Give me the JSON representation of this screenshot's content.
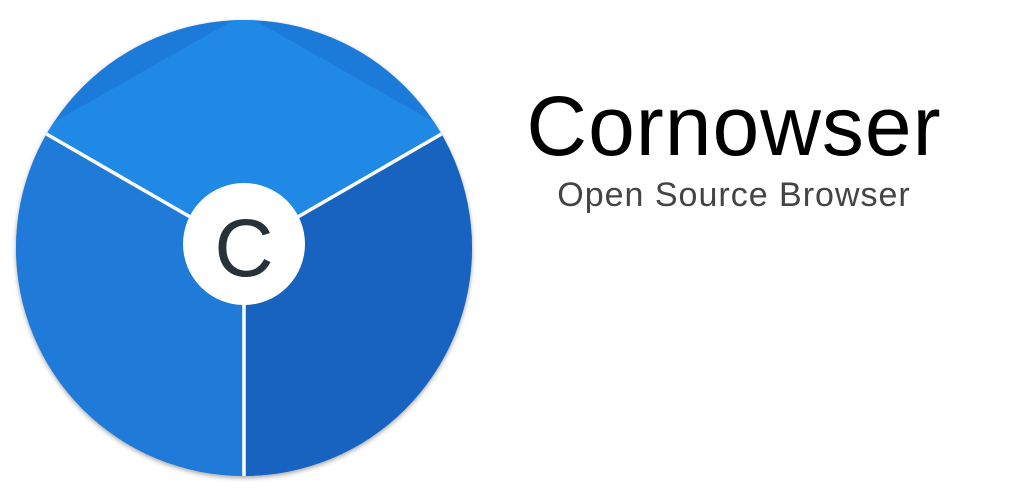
{
  "logo": {
    "letter": "C",
    "icon": "cornowser-logo-icon",
    "colors": {
      "top_segment": "#2088e5",
      "left_segment": "#1f7ad8",
      "right_segment": "#1863c0",
      "center_badge": "#ffffff",
      "divider": "#ffffff",
      "letter": "#263238"
    }
  },
  "app": {
    "name": "Cornowser",
    "tagline": "Open Source Browser"
  }
}
